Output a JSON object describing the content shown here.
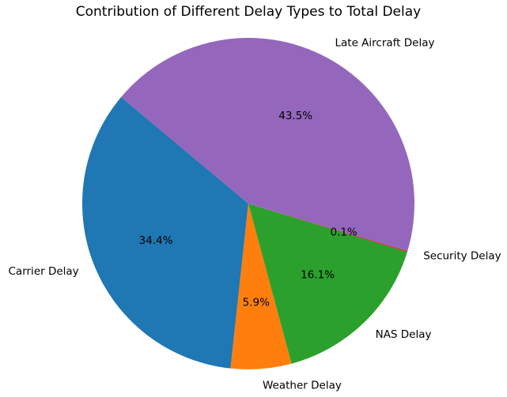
{
  "chart_data": {
    "type": "pie",
    "title": "Contribution of Different Delay Types to Total Delay",
    "slices": [
      {
        "label": "Carrier Delay",
        "value": 34.4,
        "pct_label": "34.4%",
        "color": "#1f77b4"
      },
      {
        "label": "Weather Delay",
        "value": 5.9,
        "pct_label": "5.9%",
        "color": "#ff7f0e"
      },
      {
        "label": "NAS Delay",
        "value": 16.1,
        "pct_label": "16.1%",
        "color": "#2ca02c"
      },
      {
        "label": "Security Delay",
        "value": 0.1,
        "pct_label": "0.1%",
        "color": "#d62728"
      },
      {
        "label": "Late Aircraft Delay",
        "value": 43.5,
        "pct_label": "43.5%",
        "color": "#9467bd"
      }
    ],
    "start_angle_deg": 140,
    "direction": "counterclockwise"
  }
}
